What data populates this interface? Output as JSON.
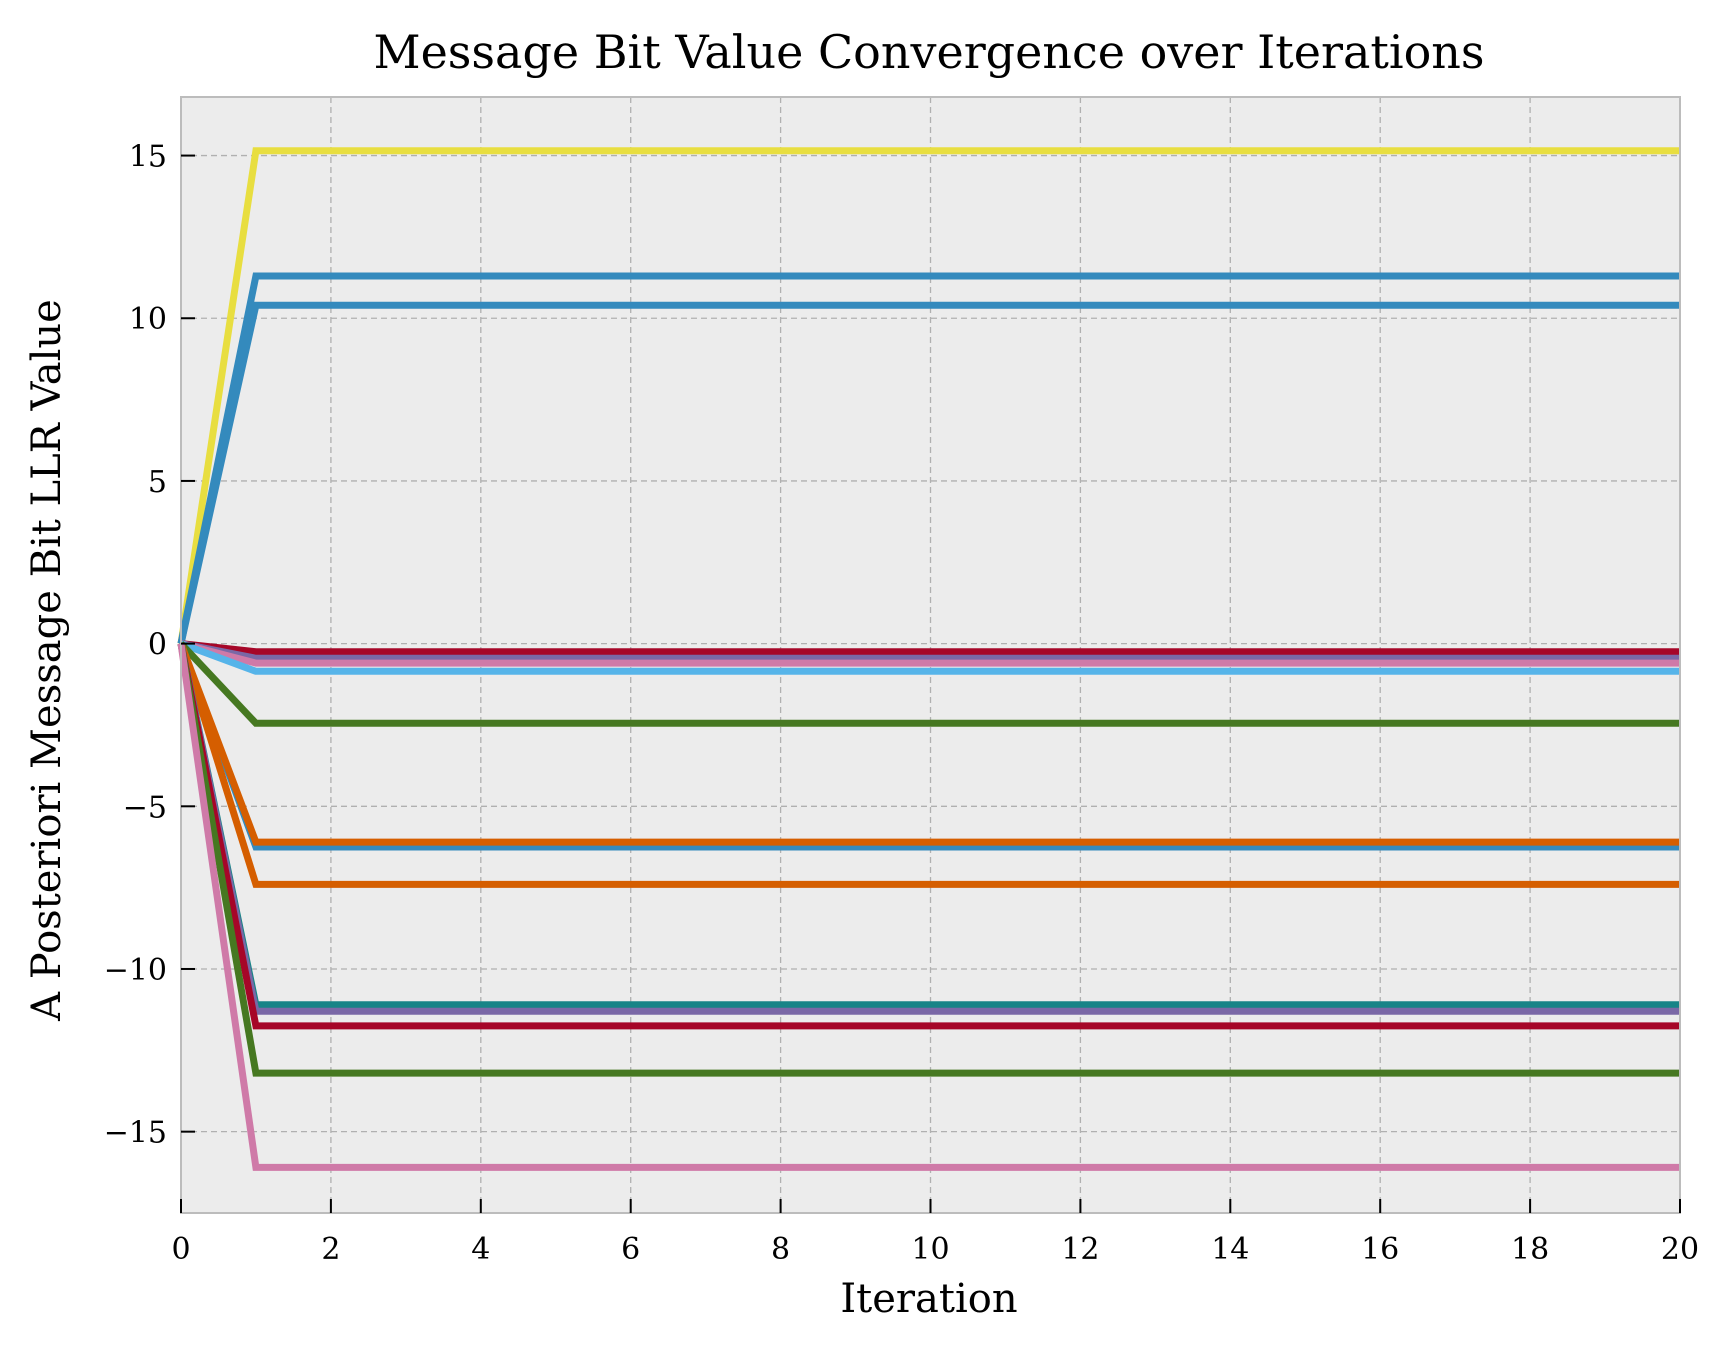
{
  "chart_data": {
    "type": "line",
    "title": "Message Bit Value Convergence over Iterations",
    "xlabel": "Iteration",
    "ylabel": "A Posteriori Message Bit LLR Value",
    "xlim": [
      0,
      20
    ],
    "ylim": [
      -17.5,
      16.8
    ],
    "xticks": [
      0,
      2,
      4,
      6,
      8,
      10,
      12,
      14,
      16,
      18,
      20
    ],
    "yticks": [
      15,
      10,
      5,
      0,
      -5,
      -10,
      -15
    ],
    "grid": true,
    "background": "#ececec",
    "x": [
      0,
      1,
      20
    ],
    "series": [
      {
        "color": "#e8de40",
        "values": [
          0,
          15.15,
          15.15
        ]
      },
      {
        "color": "#348abd",
        "values": [
          0,
          11.3,
          11.3
        ]
      },
      {
        "color": "#348abd",
        "values": [
          0,
          10.4,
          10.4
        ]
      },
      {
        "color": "#a60628",
        "values": [
          0,
          -0.25,
          -0.25
        ]
      },
      {
        "color": "#7a68a6",
        "values": [
          0,
          -0.45,
          -0.45
        ]
      },
      {
        "color": "#cf7aa8",
        "values": [
          0,
          -0.6,
          -0.6
        ]
      },
      {
        "color": "#56b4e9",
        "values": [
          0,
          -0.85,
          -0.85
        ]
      },
      {
        "color": "#467821",
        "values": [
          0,
          -2.45,
          -2.45
        ]
      },
      {
        "color": "#348abd",
        "values": [
          0,
          -6.25,
          -6.25
        ]
      },
      {
        "color": "#d55e00",
        "values": [
          0,
          -6.1,
          -6.1
        ]
      },
      {
        "color": "#d55e00",
        "values": [
          0,
          -7.4,
          -7.4
        ]
      },
      {
        "color": "#188487",
        "values": [
          0,
          -11.1,
          -11.1
        ]
      },
      {
        "color": "#7a68a6",
        "values": [
          0,
          -11.3,
          -11.3
        ]
      },
      {
        "color": "#a60628",
        "values": [
          0,
          -11.75,
          -11.75
        ]
      },
      {
        "color": "#467821",
        "values": [
          0,
          -13.2,
          -13.2
        ]
      },
      {
        "color": "#cf7aa8",
        "values": [
          0,
          -16.1,
          -16.1
        ]
      }
    ]
  }
}
